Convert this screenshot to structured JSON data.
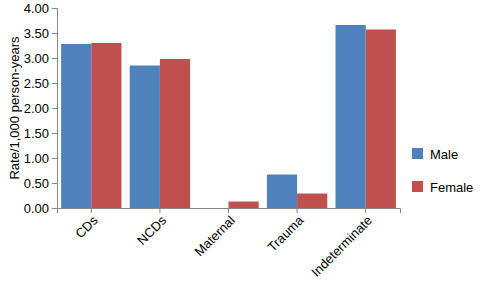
{
  "chart_data": {
    "type": "bar",
    "y_label": "Rate/1,000 person-years",
    "categories": [
      "CDs",
      "NCDs",
      "Maternal",
      "Trauma",
      "Indeterminate"
    ],
    "series": [
      {
        "name": "Male",
        "color": "#4f81bd",
        "values": [
          3.28,
          2.85,
          0,
          0.67,
          3.66
        ]
      },
      {
        "name": "Female",
        "color": "#c0504d",
        "values": [
          3.3,
          2.98,
          0.13,
          0.29,
          3.57
        ]
      }
    ],
    "ylim": [
      0,
      4
    ],
    "yticks": [
      {
        "value": 0,
        "label": "0.00"
      },
      {
        "value": 0.5,
        "label": "0.50"
      },
      {
        "value": 1,
        "label": "1.00"
      },
      {
        "value": 1.5,
        "label": "1.50"
      },
      {
        "value": 2,
        "label": "2.00"
      },
      {
        "value": 2.5,
        "label": "2.50"
      },
      {
        "value": 3,
        "label": "3.00"
      },
      {
        "value": 3.5,
        "label": "3.50"
      },
      {
        "value": 4,
        "label": "4.00"
      }
    ],
    "grid": false,
    "legend": "right"
  }
}
